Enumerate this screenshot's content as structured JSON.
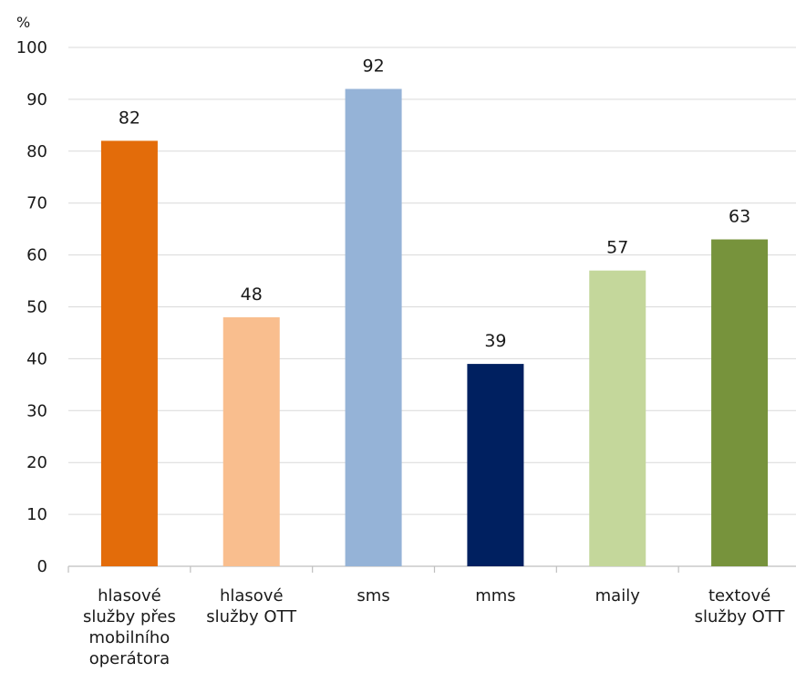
{
  "chart_data": {
    "type": "bar",
    "title": "",
    "xlabel": "",
    "ylabel": "%",
    "ylim": [
      0,
      100
    ],
    "yticks": [
      0,
      10,
      20,
      30,
      40,
      50,
      60,
      70,
      80,
      90,
      100
    ],
    "grid": true,
    "legend": "none",
    "categories": [
      [
        "hlasové",
        "služby přes",
        "mobilního",
        "operátora"
      ],
      [
        "hlasové",
        "služby OTT"
      ],
      [
        "sms"
      ],
      [
        "mms"
      ],
      [
        "maily"
      ],
      [
        "textové",
        "služby OTT"
      ]
    ],
    "values": [
      82,
      48,
      92,
      39,
      57,
      63
    ],
    "data_labels": [
      "82",
      "48",
      "92",
      "39",
      "57",
      "63"
    ],
    "colors": [
      "#e36c0a",
      "#f9be8e",
      "#95b3d7",
      "#002060",
      "#c4d79b",
      "#77933c"
    ]
  }
}
